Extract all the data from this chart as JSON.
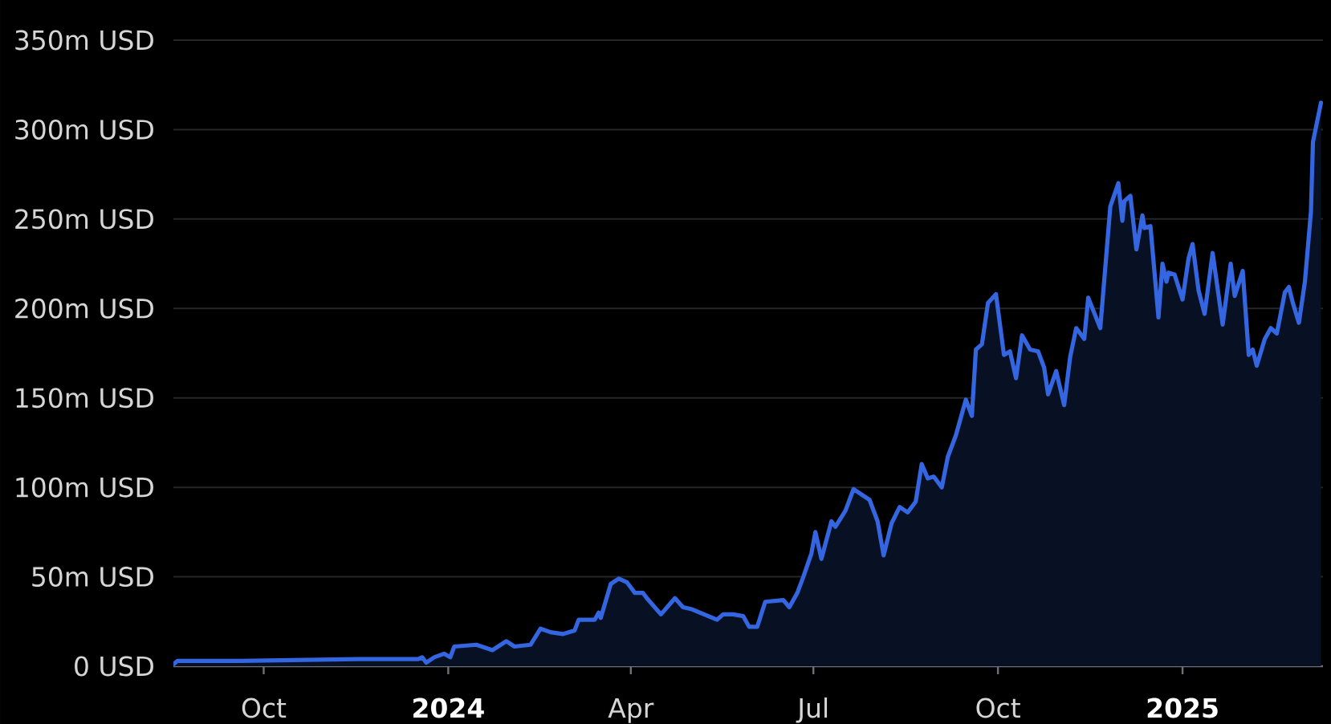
{
  "chart_data": {
    "type": "area",
    "color": "#3366e0",
    "grid": "y",
    "xlim": [
      "2023-08-17",
      "2025-03-12"
    ],
    "ylim": [
      0,
      350
    ],
    "xticks": [
      {
        "value": "2023-10-01",
        "label": "Oct"
      },
      {
        "value": "2024-01-01",
        "label": "2024"
      },
      {
        "value": "2024-04-01",
        "label": "Apr"
      },
      {
        "value": "2024-07-01",
        "label": "Jul"
      },
      {
        "value": "2024-10-01",
        "label": "Oct"
      },
      {
        "value": "2025-01-01",
        "label": "2025"
      }
    ],
    "yticks": [
      {
        "value": 0,
        "label": "0 USD"
      },
      {
        "value": 50,
        "label": "50m USD"
      },
      {
        "value": 100,
        "label": "100m USD"
      },
      {
        "value": 150,
        "label": "150m USD"
      },
      {
        "value": 200,
        "label": "200m USD"
      },
      {
        "value": 250,
        "label": "250m USD"
      },
      {
        "value": 300,
        "label": "300m USD"
      },
      {
        "value": 350,
        "label": "350m USD"
      }
    ],
    "x": [
      "2023-08-17",
      "2023-08-19",
      "2023-09-20",
      "2023-11-17",
      "2023-12-17",
      "2023-12-19",
      "2023-12-21",
      "2023-12-25",
      "2023-12-30",
      "2024-01-02",
      "2024-01-04",
      "2024-01-15",
      "2024-01-23",
      "2024-01-30",
      "2024-02-03",
      "2024-02-11",
      "2024-02-16",
      "2024-02-21",
      "2024-02-27",
      "2024-03-04",
      "2024-03-06",
      "2024-03-14",
      "2024-03-16",
      "2024-03-17",
      "2024-03-22",
      "2024-03-26",
      "2024-03-30",
      "2024-04-03",
      "2024-04-07",
      "2024-04-09",
      "2024-04-16",
      "2024-04-23",
      "2024-04-27",
      "2024-05-01",
      "2024-05-14",
      "2024-05-17",
      "2024-05-22",
      "2024-05-27",
      "2024-05-30",
      "2024-06-03",
      "2024-06-07",
      "2024-06-16",
      "2024-06-19",
      "2024-06-23",
      "2024-06-26",
      "2024-06-30",
      "2024-07-02",
      "2024-07-05",
      "2024-07-10",
      "2024-07-12",
      "2024-07-17",
      "2024-07-21",
      "2024-07-25",
      "2024-07-29",
      "2024-08-02",
      "2024-08-05",
      "2024-08-09",
      "2024-08-13",
      "2024-08-17",
      "2024-08-21",
      "2024-08-24",
      "2024-08-27",
      "2024-08-30",
      "2024-09-03",
      "2024-09-06",
      "2024-09-10",
      "2024-09-13",
      "2024-09-15",
      "2024-09-18",
      "2024-09-20",
      "2024-09-23",
      "2024-09-26",
      "2024-09-30",
      "2024-10-04",
      "2024-10-07",
      "2024-10-10",
      "2024-10-13",
      "2024-10-17",
      "2024-10-21",
      "2024-10-24",
      "2024-10-26",
      "2024-10-30",
      "2024-11-03",
      "2024-11-06",
      "2024-11-09",
      "2024-11-13",
      "2024-11-15",
      "2024-11-21",
      "2024-11-26",
      "2024-11-30",
      "2024-12-02",
      "2024-12-03",
      "2024-12-06",
      "2024-12-09",
      "2024-12-12",
      "2024-12-13",
      "2024-12-16",
      "2024-12-20",
      "2024-12-22",
      "2024-12-24",
      "2024-12-25",
      "2024-12-28",
      "2025-01-01",
      "2025-01-04",
      "2025-01-06",
      "2025-01-09",
      "2025-01-12",
      "2025-01-16",
      "2025-01-21",
      "2025-01-25",
      "2025-01-27",
      "2025-01-31",
      "2025-02-03",
      "2025-02-05",
      "2025-02-07",
      "2025-02-11",
      "2025-02-14",
      "2025-02-17",
      "2025-02-21",
      "2025-02-23",
      "2025-02-25",
      "2025-02-28",
      "2025-03-03",
      "2025-03-06",
      "2025-03-07",
      "2025-03-11"
    ],
    "values": [
      1,
      3,
      3,
      4,
      4,
      5,
      2,
      5,
      7,
      5,
      11,
      12,
      9,
      14,
      11,
      12,
      21,
      19,
      18,
      20,
      26,
      26,
      30,
      27,
      46,
      49,
      47,
      41,
      41,
      38,
      29,
      38,
      33,
      32,
      26,
      29,
      29,
      28,
      22,
      22,
      36,
      37,
      33,
      41,
      50,
      63,
      75,
      60,
      81,
      78,
      87,
      99,
      96,
      93,
      81,
      62,
      80,
      89,
      86,
      92,
      113,
      105,
      106,
      100,
      117,
      129,
      141,
      149,
      140,
      177,
      180,
      203,
      208,
      174,
      176,
      161,
      185,
      177,
      176,
      167,
      152,
      165,
      146,
      173,
      189,
      183,
      206,
      189,
      257,
      270,
      249,
      260,
      263,
      233,
      252,
      245,
      246,
      195,
      225,
      215,
      220,
      219,
      205,
      228,
      236,
      210,
      197,
      231,
      191,
      225,
      207,
      221,
      174,
      177,
      168,
      183,
      189,
      186,
      209,
      212,
      203,
      192,
      215,
      254,
      293,
      315
    ]
  }
}
